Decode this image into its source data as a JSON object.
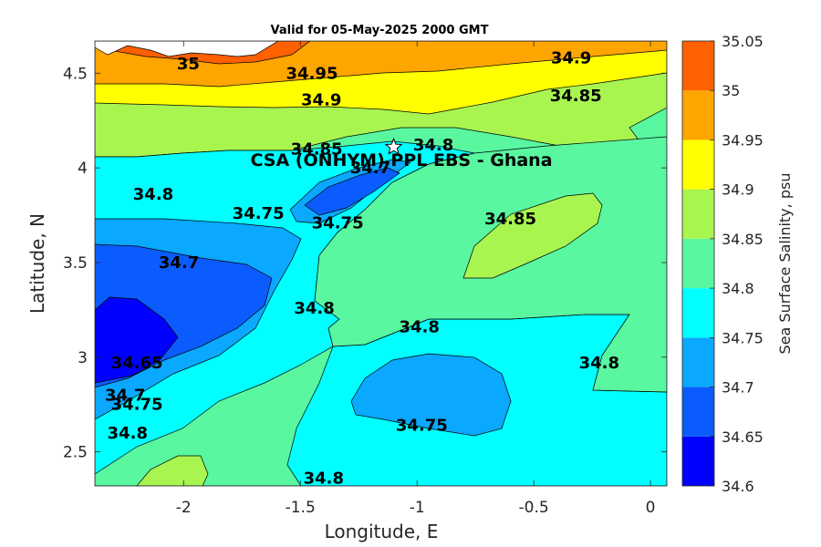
{
  "chart_data": {
    "type": "heatmap",
    "title": "Valid for 05-May-2025 2000 GMT",
    "xlabel": "Longitude, E",
    "ylabel": "Latitude, N",
    "xlim": [
      -2.38,
      0.07
    ],
    "ylim": [
      2.32,
      4.67
    ],
    "xticks": [
      -2,
      -1.5,
      -1,
      -0.5,
      0
    ],
    "xtick_labels": [
      "-2",
      "-1.5",
      "-1",
      "-0.5",
      "0"
    ],
    "yticks": [
      2.5,
      3,
      3.5,
      4,
      4.5
    ],
    "ytick_labels": [
      "2.5",
      "3",
      "3.5",
      "4",
      "4.5"
    ],
    "colorbar": {
      "title": "Sea Surface Salinity, psu",
      "levels": [
        34.6,
        34.65,
        34.7,
        34.75,
        34.8,
        34.85,
        34.9,
        34.95,
        35,
        35.05
      ],
      "level_labels": [
        "34.6",
        "34.65",
        "34.7",
        "34.75",
        "34.8",
        "34.85",
        "34.9",
        "34.95",
        "35",
        "35.05"
      ],
      "colors": [
        "#0000ff",
        "#0a5cff",
        "#0aa8ff",
        "#00ffff",
        "#58f7a0",
        "#a8f550",
        "#ffff00",
        "#ffa500",
        "#ff6000"
      ]
    },
    "contour_labels": [
      {
        "text": "35",
        "lon": -1.98,
        "lat": 4.55
      },
      {
        "text": "34.95",
        "lon": -1.45,
        "lat": 4.5
      },
      {
        "text": "34.9",
        "lon": -0.34,
        "lat": 4.58
      },
      {
        "text": "34.9",
        "lon": -1.41,
        "lat": 4.36
      },
      {
        "text": "34.85",
        "lon": -0.32,
        "lat": 4.38
      },
      {
        "text": "34.85",
        "lon": -1.43,
        "lat": 4.1
      },
      {
        "text": "34.8",
        "lon": -0.93,
        "lat": 4.12
      },
      {
        "text": "34.7",
        "lon": -1.2,
        "lat": 4.0
      },
      {
        "text": "34.8",
        "lon": -2.13,
        "lat": 3.86
      },
      {
        "text": "34.75",
        "lon": -1.68,
        "lat": 3.76
      },
      {
        "text": "34.75",
        "lon": -1.34,
        "lat": 3.71
      },
      {
        "text": "34.85",
        "lon": -0.6,
        "lat": 3.73
      },
      {
        "text": "34.7",
        "lon": -2.02,
        "lat": 3.5
      },
      {
        "text": "34.8",
        "lon": -1.44,
        "lat": 3.26
      },
      {
        "text": "34.8",
        "lon": -0.99,
        "lat": 3.16
      },
      {
        "text": "34.8",
        "lon": -0.22,
        "lat": 2.97
      },
      {
        "text": "34.65",
        "lon": -2.2,
        "lat": 2.97
      },
      {
        "text": "34.7",
        "lon": -2.25,
        "lat": 2.8
      },
      {
        "text": "34.75",
        "lon": -2.2,
        "lat": 2.75
      },
      {
        "text": "34.8",
        "lon": -2.24,
        "lat": 2.6
      },
      {
        "text": "34.75",
        "lon": -0.98,
        "lat": 2.64
      },
      {
        "text": "34.8",
        "lon": -1.4,
        "lat": 2.36
      }
    ],
    "marker": {
      "label": "CSA (ONHYM) PPL EBS  - Ghana",
      "lon": -1.1,
      "lat": 4.11
    }
  }
}
